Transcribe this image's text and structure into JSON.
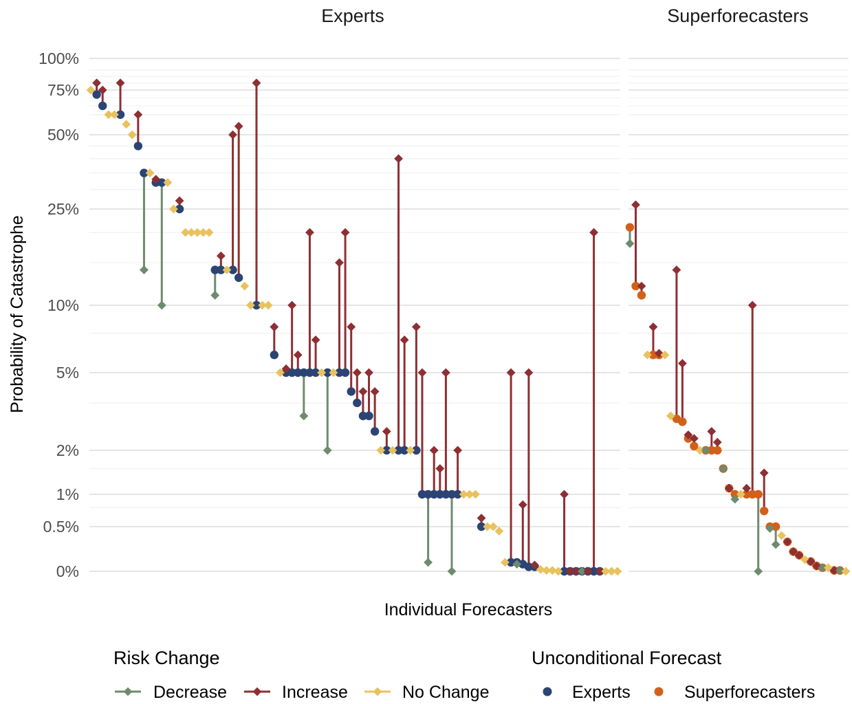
{
  "chart_data": {
    "type": "scatter",
    "panels": [
      "Experts",
      "Superforecasters"
    ],
    "xlabel": "Individual Forecasters",
    "ylabel": "Probability of Catastrophe",
    "y_ticks": [
      {
        "value": 1.0,
        "label": "100%"
      },
      {
        "value": 0.75,
        "label": "75%"
      },
      {
        "value": 0.5,
        "label": "50%"
      },
      {
        "value": 0.25,
        "label": "25%"
      },
      {
        "value": 0.1,
        "label": "10%"
      },
      {
        "value": 0.05,
        "label": "5%"
      },
      {
        "value": 0.02,
        "label": "2%"
      },
      {
        "value": 0.01,
        "label": "1%"
      },
      {
        "value": 0.005,
        "label": "0.5%"
      },
      {
        "value": 0.0,
        "label": "0%"
      }
    ],
    "y_scale": "compressed-log",
    "grid": true,
    "legend": {
      "position": "bottom",
      "risk_change": {
        "title": "Risk Change",
        "items": [
          {
            "label": "Decrease",
            "color": "#6e8b6f"
          },
          {
            "label": "Increase",
            "color": "#8e2f33"
          },
          {
            "label": "No Change",
            "color": "#e8c25e"
          }
        ]
      },
      "unconditional": {
        "title": "Unconditional Forecast",
        "items": [
          {
            "label": "Experts",
            "color": "#2b4474"
          },
          {
            "label": "Superforecasters",
            "color": "#d2601a"
          }
        ]
      }
    },
    "series": [
      {
        "name": "Experts",
        "forecasts": [
          {
            "u": 0.75,
            "c": 0.75,
            "change": "No Change"
          },
          {
            "u": 0.72,
            "c": 0.8,
            "change": "Increase"
          },
          {
            "u": 0.65,
            "c": 0.75,
            "change": "Increase"
          },
          {
            "u": 0.6,
            "c": 0.6,
            "change": "No Change"
          },
          {
            "u": 0.6,
            "c": 0.6,
            "change": "No Change"
          },
          {
            "u": 0.6,
            "c": 0.8,
            "change": "Increase"
          },
          {
            "u": 0.55,
            "c": 0.55,
            "change": "No Change"
          },
          {
            "u": 0.5,
            "c": 0.5,
            "change": "No Change"
          },
          {
            "u": 0.45,
            "c": 0.6,
            "change": "Increase"
          },
          {
            "u": 0.35,
            "c": 0.14,
            "change": "Decrease"
          },
          {
            "u": 0.35,
            "c": 0.35,
            "change": "No Change"
          },
          {
            "u": 0.32,
            "c": 0.33,
            "change": "Increase"
          },
          {
            "u": 0.32,
            "c": 0.1,
            "change": "Decrease"
          },
          {
            "u": 0.32,
            "c": 0.32,
            "change": "No Change"
          },
          {
            "u": 0.25,
            "c": 0.25,
            "change": "No Change"
          },
          {
            "u": 0.25,
            "c": 0.27,
            "change": "Increase"
          },
          {
            "u": 0.2,
            "c": 0.2,
            "change": "No Change"
          },
          {
            "u": 0.2,
            "c": 0.2,
            "change": "No Change"
          },
          {
            "u": 0.2,
            "c": 0.2,
            "change": "No Change"
          },
          {
            "u": 0.2,
            "c": 0.2,
            "change": "No Change"
          },
          {
            "u": 0.2,
            "c": 0.2,
            "change": "No Change"
          },
          {
            "u": 0.14,
            "c": 0.11,
            "change": "Decrease"
          },
          {
            "u": 0.14,
            "c": 0.16,
            "change": "Increase"
          },
          {
            "u": 0.14,
            "c": 0.14,
            "change": "No Change"
          },
          {
            "u": 0.14,
            "c": 0.5,
            "change": "Increase"
          },
          {
            "u": 0.13,
            "c": 0.54,
            "change": "Increase"
          },
          {
            "u": 0.12,
            "c": 0.12,
            "change": "No Change"
          },
          {
            "u": 0.1,
            "c": 0.1,
            "change": "No Change"
          },
          {
            "u": 0.1,
            "c": 0.8,
            "change": "Increase"
          },
          {
            "u": 0.1,
            "c": 0.1,
            "change": "No Change"
          },
          {
            "u": 0.1,
            "c": 0.1,
            "change": "No Change"
          },
          {
            "u": 0.06,
            "c": 0.08,
            "change": "Increase"
          },
          {
            "u": 0.05,
            "c": 0.05,
            "change": "No Change"
          },
          {
            "u": 0.05,
            "c": 0.052,
            "change": "Increase"
          },
          {
            "u": 0.05,
            "c": 0.1,
            "change": "Increase"
          },
          {
            "u": 0.05,
            "c": 0.06,
            "change": "Increase"
          },
          {
            "u": 0.05,
            "c": 0.03,
            "change": "Decrease"
          },
          {
            "u": 0.05,
            "c": 0.2,
            "change": "Increase"
          },
          {
            "u": 0.05,
            "c": 0.07,
            "change": "Increase"
          },
          {
            "u": 0.05,
            "c": 0.05,
            "change": "No Change"
          },
          {
            "u": 0.05,
            "c": 0.02,
            "change": "Decrease"
          },
          {
            "u": 0.05,
            "c": 0.05,
            "change": "No Change"
          },
          {
            "u": 0.05,
            "c": 0.15,
            "change": "Increase"
          },
          {
            "u": 0.05,
            "c": 0.2,
            "change": "Increase"
          },
          {
            "u": 0.04,
            "c": 0.08,
            "change": "Increase"
          },
          {
            "u": 0.035,
            "c": 0.05,
            "change": "Increase"
          },
          {
            "u": 0.03,
            "c": 0.04,
            "change": "Increase"
          },
          {
            "u": 0.03,
            "c": 0.05,
            "change": "Increase"
          },
          {
            "u": 0.025,
            "c": 0.04,
            "change": "Increase"
          },
          {
            "u": 0.02,
            "c": 0.02,
            "change": "No Change"
          },
          {
            "u": 0.02,
            "c": 0.025,
            "change": "Increase"
          },
          {
            "u": 0.02,
            "c": 0.02,
            "change": "No Change"
          },
          {
            "u": 0.02,
            "c": 0.4,
            "change": "Increase"
          },
          {
            "u": 0.02,
            "c": 0.07,
            "change": "Increase"
          },
          {
            "u": 0.02,
            "c": 0.02,
            "change": "No Change"
          },
          {
            "u": 0.02,
            "c": 0.08,
            "change": "Increase"
          },
          {
            "u": 0.01,
            "c": 0.05,
            "change": "Increase"
          },
          {
            "u": 0.01,
            "c": 0.001,
            "change": "Decrease"
          },
          {
            "u": 0.01,
            "c": 0.02,
            "change": "Increase"
          },
          {
            "u": 0.01,
            "c": 0.015,
            "change": "Increase"
          },
          {
            "u": 0.01,
            "c": 0.05,
            "change": "Increase"
          },
          {
            "u": 0.01,
            "c": 0.0,
            "change": "Decrease"
          },
          {
            "u": 0.01,
            "c": 0.02,
            "change": "Increase"
          },
          {
            "u": 0.01,
            "c": 0.01,
            "change": "No Change"
          },
          {
            "u": 0.01,
            "c": 0.01,
            "change": "No Change"
          },
          {
            "u": 0.01,
            "c": 0.01,
            "change": "No Change"
          },
          {
            "u": 0.005,
            "c": 0.006,
            "change": "Increase"
          },
          {
            "u": 0.005,
            "c": 0.005,
            "change": "No Change"
          },
          {
            "u": 0.005,
            "c": 0.005,
            "change": "No Change"
          },
          {
            "u": 0.0045,
            "c": 0.0045,
            "change": "No Change"
          },
          {
            "u": 0.001,
            "c": 0.001,
            "change": "No Change"
          },
          {
            "u": 0.001,
            "c": 0.05,
            "change": "Increase"
          },
          {
            "u": 0.001,
            "c": 0.0008,
            "change": "Decrease"
          },
          {
            "u": 0.0008,
            "c": 0.008,
            "change": "Increase"
          },
          {
            "u": 0.0005,
            "c": 0.05,
            "change": "Increase"
          },
          {
            "u": 0.0005,
            "c": 0.0007,
            "change": "Increase"
          },
          {
            "u": 0.0002,
            "c": 0.0002,
            "change": "No Change"
          },
          {
            "u": 0.0001,
            "c": 0.0001,
            "change": "No Change"
          },
          {
            "u": 0.0001,
            "c": 0.0001,
            "change": "No Change"
          },
          {
            "u": 0.0,
            "c": 0.0,
            "change": "No Change"
          },
          {
            "u": 0.0,
            "c": 0.01,
            "change": "Increase"
          },
          {
            "u": 0.0,
            "c": 0.0,
            "change": "Increase"
          },
          {
            "u": 0.0,
            "c": 0.0,
            "change": "Increase"
          },
          {
            "u": 0.0,
            "c": 0.0,
            "change": "Decrease"
          },
          {
            "u": 0.0,
            "c": 0.0,
            "change": "Increase"
          },
          {
            "u": 0.0,
            "c": 0.2,
            "change": "Increase"
          },
          {
            "u": 0.0,
            "c": 0.0,
            "change": "Increase"
          },
          {
            "u": 0.0,
            "c": 0.0,
            "change": "No Change"
          },
          {
            "u": 0.0,
            "c": 0.0,
            "change": "No Change"
          },
          {
            "u": 0.0,
            "c": 0.0,
            "change": "No Change"
          }
        ]
      },
      {
        "name": "Superforecasters",
        "forecasts": [
          {
            "u": 0.21,
            "c": 0.18,
            "change": "Decrease"
          },
          {
            "u": 0.12,
            "c": 0.26,
            "change": "Increase"
          },
          {
            "u": 0.11,
            "c": 0.12,
            "change": "Increase"
          },
          {
            "u": 0.06,
            "c": 0.06,
            "change": "No Change"
          },
          {
            "u": 0.06,
            "c": 0.08,
            "change": "Increase"
          },
          {
            "u": 0.06,
            "c": 0.061,
            "change": "Increase"
          },
          {
            "u": 0.06,
            "c": 0.06,
            "change": "No Change"
          },
          {
            "u": 0.03,
            "c": 0.03,
            "change": "No Change"
          },
          {
            "u": 0.029,
            "c": 0.14,
            "change": "Increase"
          },
          {
            "u": 0.028,
            "c": 0.055,
            "change": "Increase"
          },
          {
            "u": 0.023,
            "c": 0.024,
            "change": "Increase"
          },
          {
            "u": 0.021,
            "c": 0.023,
            "change": "Increase"
          },
          {
            "u": 0.02,
            "c": 0.02,
            "change": "No Change"
          },
          {
            "u": 0.02,
            "c": 0.02,
            "change": "Decrease"
          },
          {
            "u": 0.02,
            "c": 0.025,
            "change": "Increase"
          },
          {
            "u": 0.02,
            "c": 0.022,
            "change": "Increase"
          },
          {
            "u": 0.015,
            "c": 0.015,
            "change": "Decrease"
          },
          {
            "u": 0.011,
            "c": 0.011,
            "change": "Increase"
          },
          {
            "u": 0.01,
            "c": 0.009,
            "change": "Decrease"
          },
          {
            "u": 0.01,
            "c": 0.01,
            "change": "No Change"
          },
          {
            "u": 0.01,
            "c": 0.011,
            "change": "Increase"
          },
          {
            "u": 0.01,
            "c": 0.1,
            "change": "Increase"
          },
          {
            "u": 0.01,
            "c": 0.0,
            "change": "Decrease"
          },
          {
            "u": 0.007,
            "c": 0.014,
            "change": "Increase"
          },
          {
            "u": 0.005,
            "c": 0.0048,
            "change": "Decrease"
          },
          {
            "u": 0.005,
            "c": 0.003,
            "change": "Decrease"
          },
          {
            "u": 0.004,
            "c": 0.004,
            "change": "No Change"
          },
          {
            "u": 0.0033,
            "c": 0.0033,
            "change": "Increase"
          },
          {
            "u": 0.0022,
            "c": 0.0022,
            "change": "Increase"
          },
          {
            "u": 0.0018,
            "c": 0.0018,
            "change": "Increase"
          },
          {
            "u": 0.0013,
            "c": 0.0013,
            "change": "No Change"
          },
          {
            "u": 0.0011,
            "c": 0.0011,
            "change": "Increase"
          },
          {
            "u": 0.0006,
            "c": 0.0006,
            "change": "Increase"
          },
          {
            "u": 0.0004,
            "c": 0.0004,
            "change": "Decrease"
          },
          {
            "u": 0.0004,
            "c": 0.0004,
            "change": "No Change"
          },
          {
            "u": 0.0001,
            "c": 0.0001,
            "change": "Increase"
          },
          {
            "u": 0.0001,
            "c": 0.0001,
            "change": "Decrease"
          },
          {
            "u": 0.0,
            "c": 0.0,
            "change": "No Change"
          }
        ]
      }
    ]
  }
}
